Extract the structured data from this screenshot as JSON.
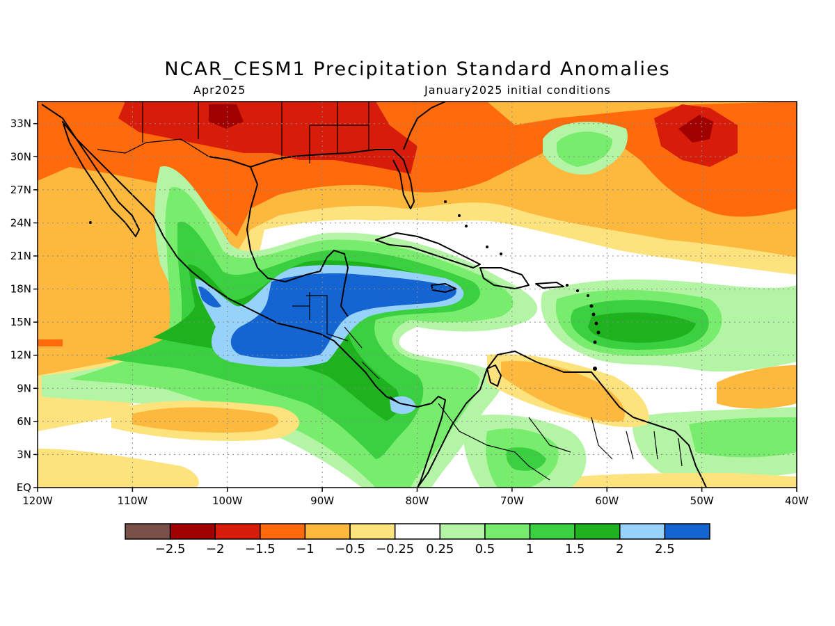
{
  "title": "NCAR_CESM1 Precipitation Standard Anomalies",
  "subtitle_left": "Apr2025",
  "subtitle_right": "January2025 initial conditions",
  "map": {
    "lon_min": -120,
    "lon_max": -40,
    "lat_min": 0,
    "lat_max": 35,
    "x_ticks": [
      {
        "lon": -120,
        "label": "120W"
      },
      {
        "lon": -110,
        "label": "110W"
      },
      {
        "lon": -100,
        "label": "100W"
      },
      {
        "lon": -90,
        "label": "90W"
      },
      {
        "lon": -80,
        "label": "80W"
      },
      {
        "lon": -70,
        "label": "70W"
      },
      {
        "lon": -60,
        "label": "60W"
      },
      {
        "lon": -50,
        "label": "50W"
      },
      {
        "lon": -40,
        "label": "40W"
      }
    ],
    "y_ticks": [
      {
        "lat": 0,
        "label": "EQ"
      },
      {
        "lat": 3,
        "label": "3N"
      },
      {
        "lat": 6,
        "label": "6N"
      },
      {
        "lat": 9,
        "label": "9N"
      },
      {
        "lat": 12,
        "label": "12N"
      },
      {
        "lat": 15,
        "label": "15N"
      },
      {
        "lat": 18,
        "label": "18N"
      },
      {
        "lat": 21,
        "label": "21N"
      },
      {
        "lat": 24,
        "label": "24N"
      },
      {
        "lat": 27,
        "label": "27N"
      },
      {
        "lat": 30,
        "label": "30N"
      },
      {
        "lat": 33,
        "label": "33N"
      }
    ],
    "gridlines": true
  },
  "colorbar": {
    "colors": [
      "#7a5148",
      "#a00000",
      "#d81c0a",
      "#ff6a0d",
      "#fdb83e",
      "#fde37d",
      "#ffffff",
      "#b3f5a5",
      "#78ec6c",
      "#3ad040",
      "#1eb31e",
      "#96d2fa",
      "#1464d2"
    ],
    "labels": [
      "−2.5",
      "−2",
      "−1.5",
      "−1",
      "−0.5",
      "−0.25",
      "0.25",
      "0.5",
      "1",
      "1.5",
      "2",
      "2.5"
    ]
  },
  "colors": {
    "dry_strong": "#d81c0a",
    "dry": "#ff6a0d",
    "dry_mod": "#fdb83e",
    "dry_weak": "#fde37d",
    "wet_weak": "#b3f5a5",
    "wet": "#78ec6c",
    "wet_mod": "#3ad040",
    "wet_strong": "#1eb31e",
    "wet_vs": "#96d2fa",
    "wet_ext": "#1464d2"
  }
}
